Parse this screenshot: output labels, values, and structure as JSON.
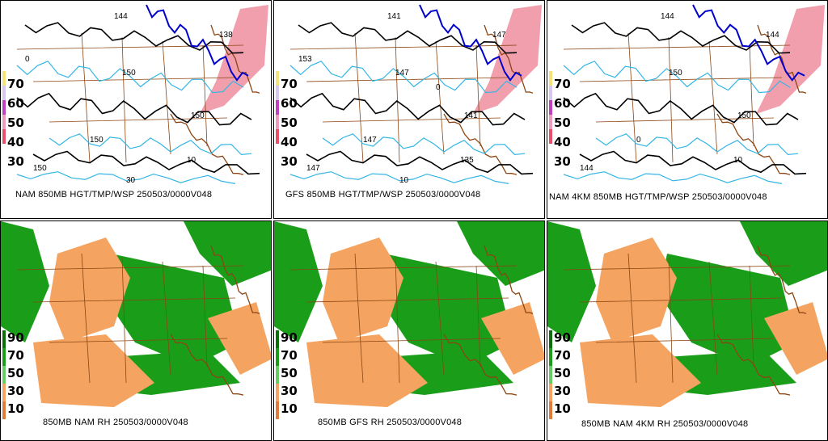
{
  "panels": [
    {
      "caption": "NAM 850MB HGT/TMP/WSP 250503/0000V048",
      "type": "hgt",
      "scale": [
        "70",
        "60",
        "50",
        "40",
        "30"
      ],
      "contour_labels": [
        "144",
        "138",
        "150",
        "150",
        "150",
        "150",
        "10",
        "0",
        "30"
      ]
    },
    {
      "caption": "GFS 850MB HGT/TMP/WSP 250503/0000V048",
      "type": "hgt",
      "scale": [
        "70",
        "60",
        "50",
        "40",
        "30"
      ],
      "contour_labels": [
        "141",
        "147",
        "147",
        "141",
        "147",
        "147",
        "135",
        "153",
        "10",
        "0"
      ]
    },
    {
      "caption": "NAM 4KM 850MB HGT/TMP/WSP 250503/0000V048",
      "type": "hgt",
      "scale": [
        "70",
        "60",
        "50",
        "40",
        "30"
      ],
      "contour_labels": [
        "144",
        "144",
        "150",
        "150",
        "144",
        "0",
        "10"
      ]
    },
    {
      "caption": "850MB NAM RH 250503/0000V048",
      "type": "rh",
      "scale": [
        "90",
        "70",
        "50",
        "30",
        "10"
      ]
    },
    {
      "caption": "850MB GFS RH 250503/0000V048",
      "type": "rh",
      "scale": [
        "90",
        "70",
        "50",
        "30",
        "10"
      ]
    },
    {
      "caption": "850MB NAM 4KM RH 250503/0000V048",
      "type": "rh",
      "scale": [
        "90",
        "70",
        "50",
        "30",
        "10"
      ]
    }
  ],
  "colors": {
    "height_contour": "#000000",
    "temp_contour": "#33b5e5",
    "zero_isotherm": "#0000cc",
    "borders": "#8b4513",
    "wind_fill": "#e8506a",
    "moist": "#1a9e1a",
    "dry": "#f4a460"
  }
}
